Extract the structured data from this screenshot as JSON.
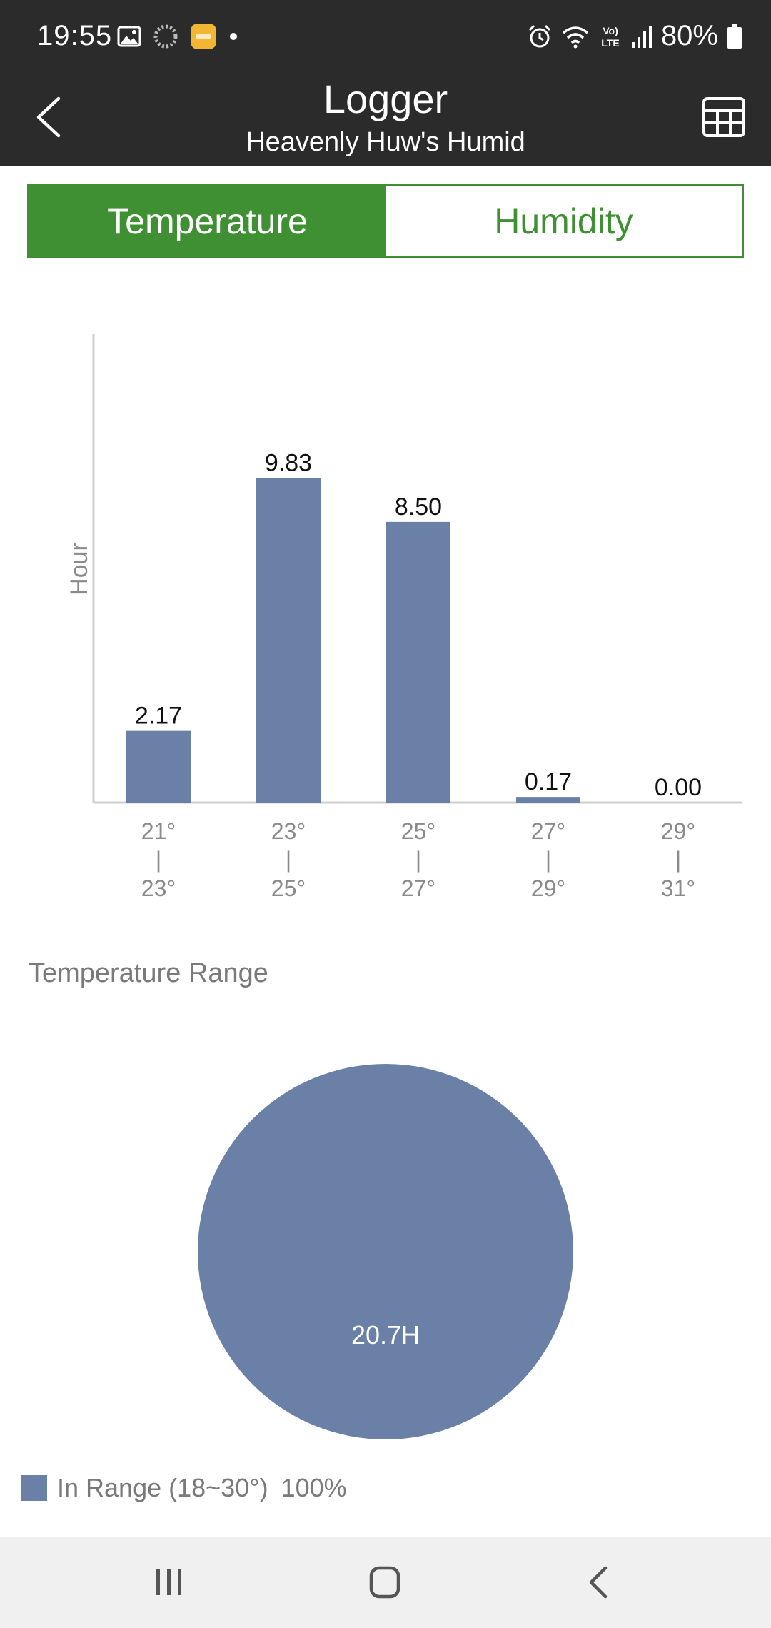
{
  "status_bar": {
    "time": "19:55",
    "battery": "80%",
    "left_icons": [
      "gallery-icon",
      "loading-ring-icon",
      "app-notification-icon",
      "dot-icon"
    ],
    "right_icons": [
      "alarm-icon",
      "wifi-icon",
      "volte-icon",
      "signal-icon",
      "battery-icon"
    ]
  },
  "header": {
    "title": "Logger",
    "subtitle": "Heavenly Huw's Humid"
  },
  "tabs": [
    {
      "label": "Temperature",
      "active": true
    },
    {
      "label": "Humidity",
      "active": false
    }
  ],
  "chart_data": {
    "type": "bar",
    "ylabel": "Hour",
    "categories": [
      {
        "from": "21°",
        "sep": "|",
        "to": "23°"
      },
      {
        "from": "23°",
        "sep": "|",
        "to": "25°"
      },
      {
        "from": "25°",
        "sep": "|",
        "to": "27°"
      },
      {
        "from": "27°",
        "sep": "|",
        "to": "29°"
      },
      {
        "from": "29°",
        "sep": "|",
        "to": "31°"
      }
    ],
    "values": [
      2.17,
      9.83,
      8.5,
      0.17,
      0.0
    ],
    "value_labels": [
      "2.17",
      "9.83",
      "8.50",
      "0.17",
      "0.00"
    ],
    "ylim": [
      0,
      12
    ],
    "bar_color": "#6b80a6"
  },
  "range_section": {
    "title": "Temperature Range",
    "pie": {
      "type": "pie",
      "slices": [
        {
          "label": "In Range (18~30°)",
          "value": 100,
          "color": "#6b80a6"
        }
      ],
      "center_label": "20.7H"
    },
    "legend": {
      "label": "In Range (18~30°)",
      "percent": "100%"
    }
  },
  "colors": {
    "accent": "#3f8f33",
    "bar": "#6b80a6",
    "dark": "#2b2b2b"
  }
}
